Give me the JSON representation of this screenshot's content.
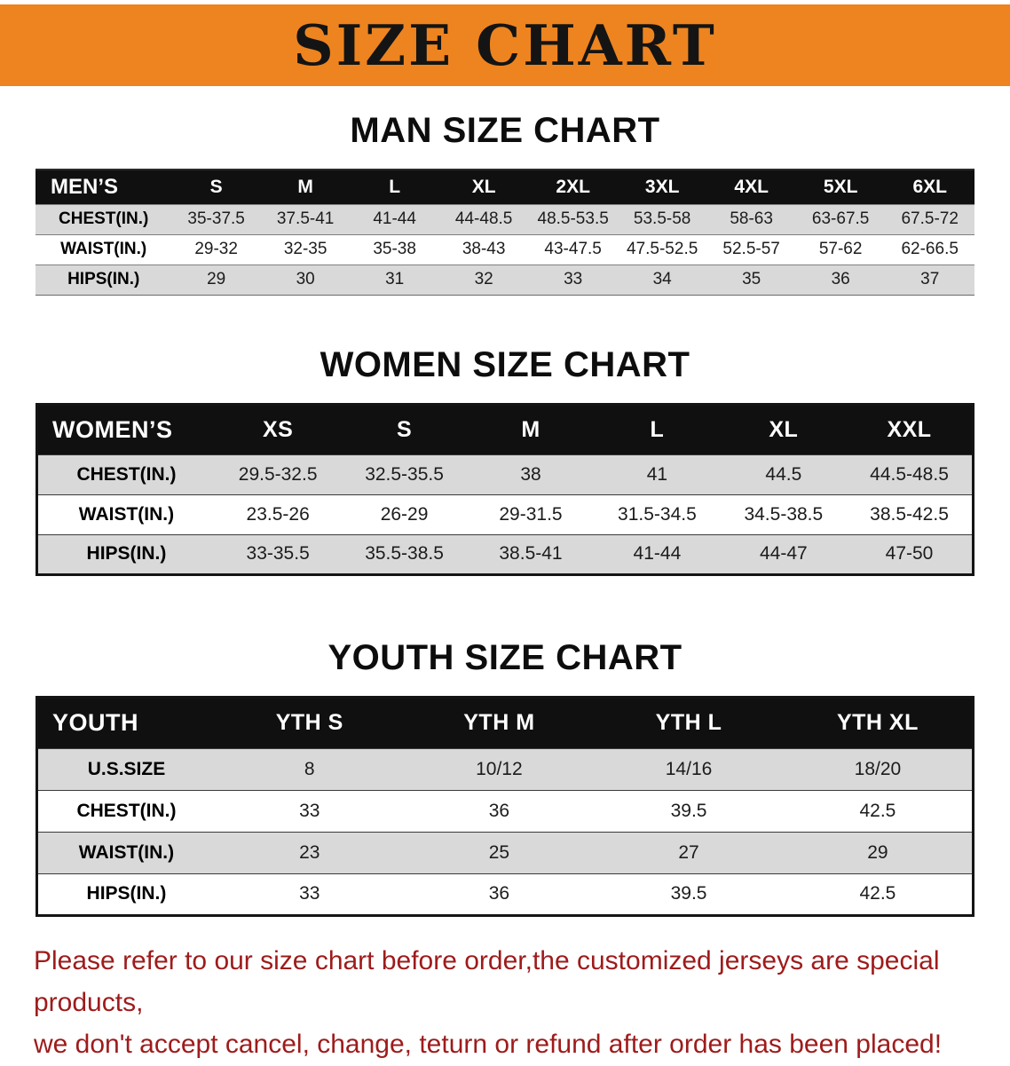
{
  "banner": {
    "title": "SIZE CHART"
  },
  "sections": [
    {
      "title": "MAN SIZE CHART",
      "table": {
        "header": [
          "MEN’S",
          "S",
          "M",
          "L",
          "XL",
          "2XL",
          "3XL",
          "4XL",
          "5XL",
          "6XL"
        ],
        "rows": [
          [
            "CHEST(IN.)",
            "35-37.5",
            "37.5-41",
            "41-44",
            "44-48.5",
            "48.5-53.5",
            "53.5-58",
            "58-63",
            "63-67.5",
            "67.5-72"
          ],
          [
            "WAIST(IN.)",
            "29-32",
            "32-35",
            "35-38",
            "38-43",
            "43-47.5",
            "47.5-52.5",
            "52.5-57",
            "57-62",
            "62-66.5"
          ],
          [
            "HIPS(IN.)",
            "29",
            "30",
            "31",
            "32",
            "33",
            "34",
            "35",
            "36",
            "37"
          ]
        ]
      }
    },
    {
      "title": "WOMEN SIZE CHART",
      "table": {
        "header": [
          "WOMEN’S",
          "XS",
          "S",
          "M",
          "L",
          "XL",
          "XXL"
        ],
        "rows": [
          [
            "CHEST(IN.)",
            "29.5-32.5",
            "32.5-35.5",
            "38",
            "41",
            "44.5",
            "44.5-48.5"
          ],
          [
            "WAIST(IN.)",
            "23.5-26",
            "26-29",
            "29-31.5",
            "31.5-34.5",
            "34.5-38.5",
            "38.5-42.5"
          ],
          [
            "HIPS(IN.)",
            "33-35.5",
            "35.5-38.5",
            "38.5-41",
            "41-44",
            "44-47",
            "47-50"
          ]
        ]
      }
    },
    {
      "title": "YOUTH SIZE CHART",
      "table": {
        "header": [
          "YOUTH",
          "YTH S",
          "YTH M",
          "YTH L",
          "YTH XL"
        ],
        "rows": [
          [
            "U.S.SIZE",
            "8",
            "10/12",
            "14/16",
            "18/20"
          ],
          [
            "CHEST(IN.)",
            "33",
            "36",
            "39.5",
            "42.5"
          ],
          [
            "WAIST(IN.)",
            "23",
            "25",
            "27",
            "29"
          ],
          [
            "HIPS(IN.)",
            "33",
            "36",
            "39.5",
            "42.5"
          ]
        ]
      }
    }
  ],
  "footer": {
    "line1": "Please refer to our size chart before order,the customized jerseys are special products,",
    "line2": "we don't accept cancel, change, teturn or refund after order has been placed!"
  },
  "colors": {
    "banner_orange": "#ED8420",
    "table_header_black": "#101010",
    "row_stripe_gray": "#D9D9D9",
    "notice_red": "#9E1B1B"
  }
}
